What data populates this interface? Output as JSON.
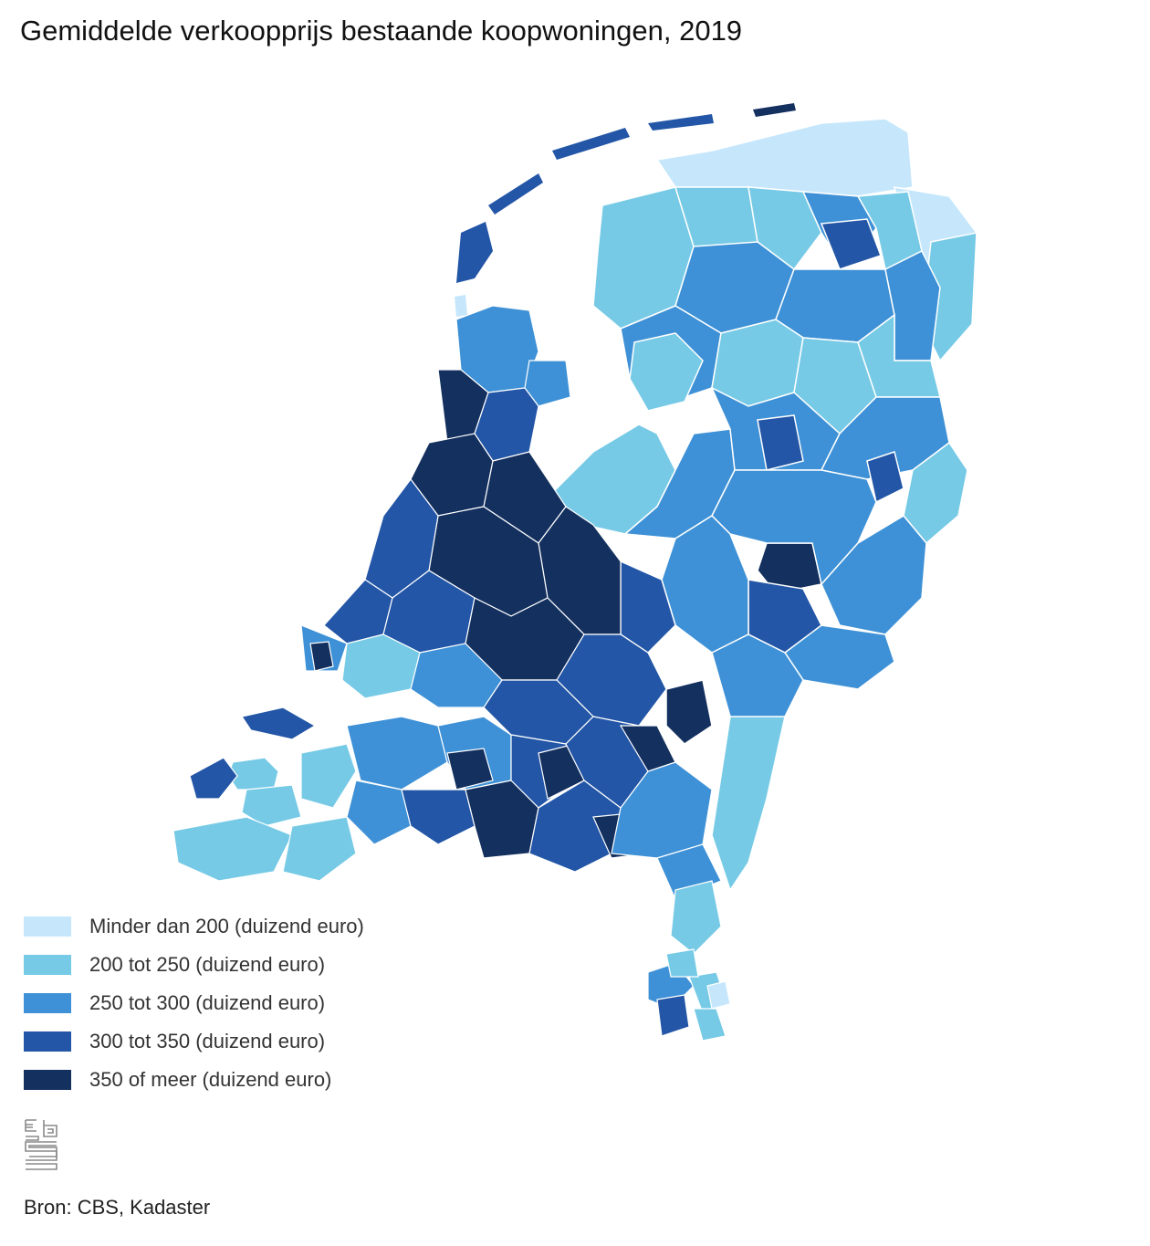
{
  "title": "Gemiddelde verkoopprijs bestaande koopwoningen, 2019",
  "legend": {
    "items": [
      {
        "label": "Minder dan 200 (duizend euro)",
        "color": "#c6e7fb"
      },
      {
        "label": "200 tot 250 (duizend euro)",
        "color": "#76cae6"
      },
      {
        "label": "250 tot 300 (duizend euro)",
        "color": "#3e91d6"
      },
      {
        "label": "300 tot 350 (duizend euro)",
        "color": "#2356a6"
      },
      {
        "label": "350 of meer (duizend euro)",
        "color": "#14305f"
      }
    ]
  },
  "map": {
    "border_color": "#ffffff",
    "background_color": "#ffffff"
  },
  "logo": {
    "icon": "cbs-logo-icon"
  },
  "source": "Bron: CBS, Kadaster"
}
